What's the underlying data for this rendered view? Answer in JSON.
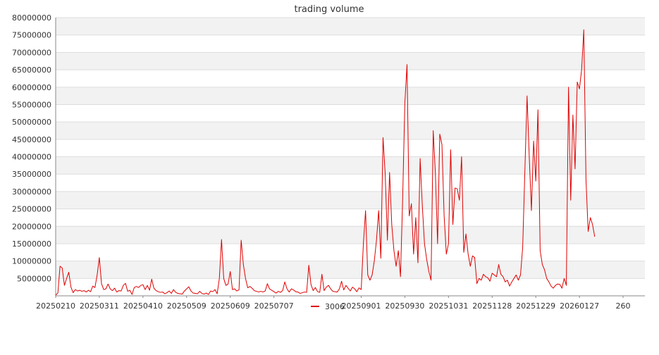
{
  "chart_data": {
    "type": "line",
    "title": "trading volume",
    "xlabel": "",
    "ylabel": "",
    "grid": true,
    "legend_position": "bottom",
    "y_range": [
      0,
      80000000
    ],
    "y_ticks": [
      5000000,
      10000000,
      15000000,
      20000000,
      25000000,
      30000000,
      35000000,
      40000000,
      45000000,
      50000000,
      55000000,
      60000000,
      65000000,
      70000000,
      75000000,
      80000000
    ],
    "x_range": [
      0,
      270
    ],
    "x_ticks": [
      {
        "x": 0,
        "label": "20250210"
      },
      {
        "x": 20,
        "label": "20250311"
      },
      {
        "x": 40,
        "label": "20250410"
      },
      {
        "x": 60,
        "label": "20250509"
      },
      {
        "x": 80,
        "label": "20250609"
      },
      {
        "x": 100,
        "label": "20250707"
      },
      {
        "x": 140,
        "label": "20250901"
      },
      {
        "x": 160,
        "label": "20250930"
      },
      {
        "x": 180,
        "label": "20251031"
      },
      {
        "x": 200,
        "label": "20251128"
      },
      {
        "x": 220,
        "label": "20251229"
      },
      {
        "x": 240,
        "label": "20260127"
      },
      {
        "x": 260,
        "label": "260"
      }
    ],
    "series": [
      {
        "name": "3006",
        "color": "#e00000",
        "values": [
          200000,
          800000,
          8500000,
          8000000,
          3000000,
          5000000,
          6800000,
          2500000,
          900000,
          1800000,
          1400000,
          1600000,
          1300000,
          1500000,
          1100000,
          1600000,
          1200000,
          2800000,
          2400000,
          6000000,
          11000000,
          3500000,
          1800000,
          2000000,
          3400000,
          2000000,
          1500000,
          2200000,
          1100000,
          1500000,
          1400000,
          3000000,
          3600000,
          1300000,
          1600000,
          400000,
          2400000,
          2700000,
          2400000,
          3000000,
          3200000,
          1800000,
          3000000,
          1600000,
          4800000,
          2200000,
          1500000,
          1200000,
          1000000,
          1100000,
          600000,
          900000,
          1400000,
          700000,
          1800000,
          1000000,
          700000,
          600000,
          500000,
          1400000,
          2000000,
          2600000,
          1400000,
          800000,
          700000,
          600000,
          1300000,
          700000,
          500000,
          800000,
          400000,
          1400000,
          1200000,
          1800000,
          600000,
          5000000,
          16200000,
          5000000,
          3000000,
          3400000,
          7000000,
          1800000,
          2000000,
          1400000,
          1700000,
          16000000,
          9000000,
          5000000,
          2300000,
          2700000,
          2200000,
          1500000,
          1300000,
          1100000,
          1300000,
          1100000,
          1400000,
          3500000,
          2000000,
          1600000,
          1200000,
          800000,
          1300000,
          1000000,
          1500000,
          4000000,
          2000000,
          1100000,
          2000000,
          1700000,
          1200000,
          1100000,
          700000,
          900000,
          1100000,
          1000000,
          8800000,
          3200000,
          1500000,
          2400000,
          1200000,
          1000000,
          6200000,
          1500000,
          2500000,
          3000000,
          2000000,
          1300000,
          1200000,
          1100000,
          2000000,
          4200000,
          1700000,
          3000000,
          2200000,
          1400000,
          2500000,
          2000000,
          1200000,
          2300000,
          1800000,
          15000000,
          24500000,
          6000000,
          4500000,
          6000000,
          10000000,
          16000000,
          24500000,
          10800000,
          45500000,
          35000000,
          16000000,
          35500000,
          20500000,
          13000000,
          8500000,
          13000000,
          5500000,
          28000000,
          55500000,
          66500000,
          23000000,
          26500000,
          12000000,
          22500000,
          9500000,
          39500000,
          26000000,
          15000000,
          10500000,
          7000000,
          4500000,
          47500000,
          35000000,
          15000000,
          46500000,
          43500000,
          23000000,
          12000000,
          15000000,
          42000000,
          20500000,
          31000000,
          30800000,
          27500000,
          40000000,
          12500000,
          17800000,
          12000000,
          8500000,
          11500000,
          11000000,
          3500000,
          5000000,
          4500000,
          6200000,
          5500000,
          5200000,
          4200000,
          6500000,
          6000000,
          5500000,
          9000000,
          6200000,
          5500000,
          4000000,
          4500000,
          2800000,
          4000000,
          5000000,
          6000000,
          4500000,
          6000000,
          14000000,
          36000000,
          57500000,
          40000000,
          24500000,
          44500000,
          33000000,
          53500000,
          13000000,
          9000000,
          7500000,
          5000000,
          4000000,
          2800000,
          2200000,
          3000000,
          3400000,
          3300000,
          2200000,
          5000000,
          3000000,
          60000000,
          27500000,
          52000000,
          36500000,
          61500000,
          59500000,
          65000000,
          76500000,
          33500000,
          18500000,
          22500000,
          20500000,
          17000000
        ]
      }
    ]
  }
}
